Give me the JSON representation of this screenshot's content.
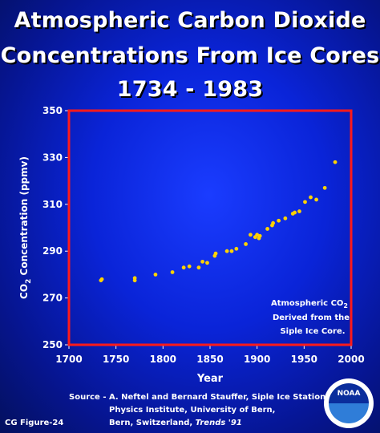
{
  "title": {
    "line1": "Atmospheric Carbon Dioxide",
    "line2": "Concentrations From Ice Cores",
    "line3": "1734 - 1983"
  },
  "colors": {
    "plot_border": "#ff1a1a",
    "points": "#ffd200",
    "text": "#ffffff"
  },
  "chart_data": {
    "type": "scatter",
    "title": "Atmospheric Carbon Dioxide Concentrations From Ice Cores 1734 - 1983",
    "xlabel": "Year",
    "ylabel_main": "CO",
    "ylabel_sub": "2",
    "ylabel_rest": " Concentration (ppmv)",
    "xlim": [
      1700,
      2000
    ],
    "ylim": [
      250,
      350
    ],
    "xticks": [
      1700,
      1750,
      1800,
      1850,
      1900,
      1950,
      2000
    ],
    "yticks": [
      250,
      270,
      290,
      310,
      330,
      350
    ],
    "grid": false,
    "annotation": {
      "line1_main": "Atmospheric CO",
      "line1_sub": "2",
      "line2": "Derived from the",
      "line3": "Siple Ice Core."
    },
    "x": [
      1734,
      1735,
      1770,
      1770,
      1792,
      1810,
      1822,
      1828,
      1838,
      1842,
      1847,
      1855,
      1856,
      1868,
      1873,
      1878,
      1888,
      1893,
      1898,
      1900,
      1902,
      1903,
      1911,
      1916,
      1917,
      1923,
      1930,
      1938,
      1940,
      1945,
      1951,
      1957,
      1963,
      1972,
      1983
    ],
    "y": [
      277.5,
      278,
      277.5,
      278.5,
      280,
      281,
      283,
      283.5,
      283,
      285.5,
      285,
      288,
      289,
      290,
      290,
      291,
      293,
      297,
      296,
      297,
      295.5,
      296.5,
      299.5,
      301,
      302,
      303,
      304,
      306,
      306.5,
      307,
      311,
      313,
      312,
      317,
      328
    ]
  },
  "source": {
    "line1": "Source - A. Neftel and Bernard Stauffer, Siple Ice Station,",
    "line2": "Physics Institute, University of Bern,",
    "line3_prefix": "Bern, Switzerland, ",
    "line3_italic": "Trends '91"
  },
  "figure_label": "CG Figure-24",
  "logo_text": "NOAA"
}
